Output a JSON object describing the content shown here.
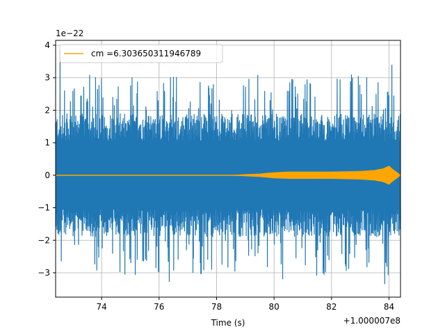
{
  "chart_data": {
    "type": "line",
    "xlabel": "Time (s)",
    "ylabel": "",
    "x_offset_label": "+1.000007e8",
    "y_scale_label": "1e−22",
    "xlim": [
      72.4,
      84.4
    ],
    "ylim": [
      -3.75,
      4.15
    ],
    "x_ticks": [
      74,
      76,
      78,
      80,
      82,
      84
    ],
    "x_tick_labels": [
      "74",
      "76",
      "78",
      "80",
      "82",
      "84"
    ],
    "y_ticks": [
      -3,
      -2,
      -1,
      0,
      1,
      2,
      3,
      4
    ],
    "y_tick_labels": [
      "−3",
      "−2",
      "−1",
      "0",
      "1",
      "2",
      "3",
      "4"
    ],
    "grid": true,
    "legend_position": "upper-left",
    "series": [
      {
        "name": "",
        "color": "#1f77b4",
        "description_values": {
          "x_start": 72.4,
          "x_end": 84.4,
          "typical_envelope": 1.9,
          "peak_max": 3.85,
          "peak_min": -3.38
        },
        "peaks": [
          {
            "x": 72.55,
            "y": 3.85
          },
          {
            "x": 76.35,
            "y": -3.28
          },
          {
            "x": 80.3,
            "y": -3.2
          },
          {
            "x": 82.7,
            "y": 3.1
          },
          {
            "x": 83.85,
            "y": -3.35
          },
          {
            "x": 84.1,
            "y": 3.4
          }
        ]
      },
      {
        "name": "cm =6.303650311946789",
        "color": "#ffa500",
        "envelope": [
          {
            "x": 72.4,
            "y": 0.0
          },
          {
            "x": 78.5,
            "y": 0.0
          },
          {
            "x": 79.0,
            "y": 0.02
          },
          {
            "x": 79.5,
            "y": 0.04
          },
          {
            "x": 80.0,
            "y": 0.08
          },
          {
            "x": 80.5,
            "y": 0.1
          },
          {
            "x": 81.0,
            "y": 0.1
          },
          {
            "x": 82.0,
            "y": 0.1
          },
          {
            "x": 83.0,
            "y": 0.12
          },
          {
            "x": 83.5,
            "y": 0.15
          },
          {
            "x": 83.8,
            "y": 0.2
          },
          {
            "x": 84.0,
            "y": 0.28
          },
          {
            "x": 84.1,
            "y": 0.2
          },
          {
            "x": 84.4,
            "y": 0.0
          }
        ]
      }
    ]
  }
}
